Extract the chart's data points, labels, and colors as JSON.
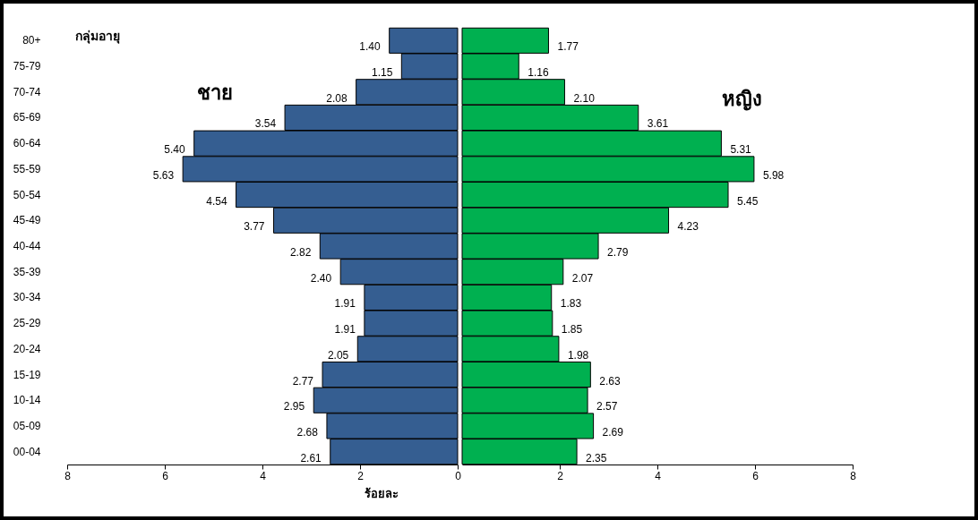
{
  "chart_data": [
    {
      "type": "bar",
      "orientation": "horizontal",
      "ylabel": "กลุ่มอายุ",
      "xlabel": "ร้อยละ",
      "categories": [
        "80+",
        "75-79",
        "70-74",
        "65-69",
        "60-64",
        "55-59",
        "50-54",
        "45-49",
        "40-44",
        "35-39",
        "30-34",
        "25-29",
        "20-24",
        "15-19",
        "10-14",
        "05-09",
        "00-04"
      ],
      "series": [
        {
          "name": "ชาย",
          "color": "#355e91",
          "values": [
            1.4,
            1.15,
            2.08,
            3.54,
            5.4,
            5.63,
            4.54,
            3.77,
            2.82,
            2.4,
            1.91,
            1.91,
            2.05,
            2.77,
            2.95,
            2.68,
            2.61
          ],
          "value_labels": [
            "1.40",
            "1.15",
            "2.08",
            "3.54",
            "5.40",
            "5.63",
            "4.54",
            "3.77",
            "2.82",
            "2.40",
            "1.91",
            "1.91",
            "2.05",
            "2.77",
            "2.95",
            "2.68",
            "2.61"
          ]
        }
      ],
      "xlim": [
        8,
        0
      ],
      "xticks": [
        8,
        6,
        4,
        2,
        0
      ],
      "legend": false,
      "grid": false
    },
    {
      "type": "bar",
      "orientation": "horizontal",
      "categories": [
        "80+",
        "75-79",
        "70-74",
        "65-69",
        "60-64",
        "55-59",
        "50-54",
        "45-49",
        "40-44",
        "35-39",
        "30-34",
        "25-29",
        "20-24",
        "15-19",
        "10-14",
        "05-09",
        "00-04"
      ],
      "series": [
        {
          "name": "หญิง",
          "color": "#00b050",
          "values": [
            1.77,
            1.16,
            2.1,
            3.61,
            5.31,
            5.98,
            5.45,
            4.23,
            2.79,
            2.07,
            1.83,
            1.85,
            1.98,
            2.63,
            2.57,
            2.69,
            2.35
          ],
          "value_labels": [
            "1.77",
            "1.16",
            "2.10",
            "3.61",
            "5.31",
            "5.98",
            "5.45",
            "4.23",
            "2.79",
            "2.07",
            "1.83",
            "1.85",
            "1.98",
            "2.63",
            "2.57",
            "2.69",
            "2.35"
          ]
        }
      ],
      "xlim": [
        0,
        8
      ],
      "xticks": [
        2,
        4,
        6,
        8
      ],
      "tick_labels": "x",
      "legend": false,
      "grid": false
    }
  ]
}
